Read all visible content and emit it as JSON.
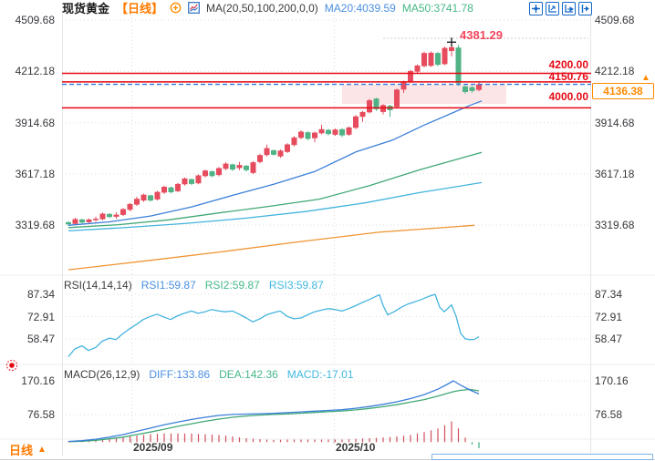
{
  "header": {
    "symbol": "现货黄金",
    "timeframe_tag": "【日线】",
    "ma_label": "MA(20,50,100,200,0,0)",
    "ma20_text": "MA20:4039.59",
    "ma50_text": "MA50:3741.78"
  },
  "toolbar": {
    "icons": [
      "pane-layout",
      "auto-scale",
      "chart-shift",
      "scroll-to-latest"
    ]
  },
  "labels": {
    "high": "4381.29",
    "resistance1": "4200.00",
    "resistance2": "4150.76",
    "support": "4000.00",
    "last_price": "4136.38",
    "badge_arrow": "▲"
  },
  "axes": {
    "main": [
      "4509.68",
      "4212.18",
      "3914.68",
      "3617.18",
      "3319.68"
    ],
    "rsi": [
      "87.34",
      "72.91",
      "58.47"
    ],
    "macd": [
      "170.16",
      "76.58"
    ]
  },
  "rsi_header": {
    "name": "RSI(14,14,14)",
    "rsi1": "RSI1:59.87",
    "rsi2": "RSI2:59.87",
    "rsi3": "RSI3:59.87"
  },
  "macd_header": {
    "name": "MACD(26,12,9)",
    "diff": "DIFF:133.86",
    "dea": "DEA:142.36",
    "macd": "MACD:-17.01"
  },
  "bottom": {
    "timeframe_label": "日线",
    "caret": "▲",
    "dates": [
      "2025/09",
      "2025/10"
    ]
  },
  "colors": {
    "up": "#e64c5e",
    "down": "#4fb385",
    "level_red": "#e60914",
    "last_blue": "#2f78e0",
    "ma20": "#3c7fd9",
    "ma50": "#41a876",
    "ma100": "#43b4dd",
    "ma200": "#ef9432",
    "rsi_line": "#43b4dd",
    "hist_pos": "#d24f5f",
    "hist_neg": "#3faf7f",
    "zone": "rgba(233,70,85,0.14)",
    "accent_orange": "#ff8a00"
  },
  "chart_data": {
    "type": "candlestick+indicators",
    "symbol": "现货黄金",
    "timeframe": "日线",
    "price_axis_ticks": [
      4509.68,
      4212.18,
      3914.68,
      3617.18,
      3319.68
    ],
    "x_axis_labels": [
      "2025/09",
      "2025/10"
    ],
    "levels": {
      "high": 4381.29,
      "resistance1": 4200.0,
      "resistance2": 4150.76,
      "support": 4000.0,
      "last_price": 4136.38
    },
    "ma_last": {
      "ma20": 4039.59,
      "ma50": 3741.78
    },
    "candles_ochl": [
      [
        3336,
        3324,
        3316,
        3342
      ],
      [
        3326,
        3354,
        3320,
        3362
      ],
      [
        3352,
        3334,
        3328,
        3356
      ],
      [
        3336,
        3352,
        3330,
        3358
      ],
      [
        3348,
        3356,
        3338,
        3368
      ],
      [
        3354,
        3386,
        3348,
        3392
      ],
      [
        3384,
        3366,
        3360,
        3388
      ],
      [
        3368,
        3380,
        3356,
        3394
      ],
      [
        3378,
        3412,
        3372,
        3418
      ],
      [
        3408,
        3442,
        3400,
        3448
      ],
      [
        3438,
        3472,
        3430,
        3484
      ],
      [
        3462,
        3496,
        3454,
        3502
      ],
      [
        3492,
        3462,
        3456,
        3496
      ],
      [
        3468,
        3512,
        3462,
        3518
      ],
      [
        3508,
        3542,
        3500,
        3548
      ],
      [
        3538,
        3510,
        3504,
        3542
      ],
      [
        3516,
        3558,
        3510,
        3564
      ],
      [
        3556,
        3590,
        3548,
        3596
      ],
      [
        3586,
        3558,
        3552,
        3590
      ],
      [
        3562,
        3608,
        3556,
        3614
      ],
      [
        3604,
        3636,
        3596,
        3642
      ],
      [
        3632,
        3604,
        3598,
        3636
      ],
      [
        3610,
        3650,
        3602,
        3656
      ],
      [
        3646,
        3676,
        3638,
        3684
      ],
      [
        3672,
        3642,
        3634,
        3676
      ],
      [
        3650,
        3668,
        3638,
        3686
      ],
      [
        3664,
        3638,
        3630,
        3668
      ],
      [
        3622,
        3684,
        3616,
        3690
      ],
      [
        3686,
        3726,
        3678,
        3734
      ],
      [
        3726,
        3766,
        3718,
        3786
      ],
      [
        3754,
        3728,
        3722,
        3758
      ],
      [
        3718,
        3752,
        3710,
        3758
      ],
      [
        3744,
        3788,
        3738,
        3794
      ],
      [
        3784,
        3828,
        3776,
        3836
      ],
      [
        3826,
        3862,
        3818,
        3870
      ],
      [
        3858,
        3820,
        3812,
        3864
      ],
      [
        3824,
        3856,
        3800,
        3862
      ],
      [
        3852,
        3876,
        3846,
        3902
      ],
      [
        3872,
        3848,
        3840,
        3878
      ],
      [
        3844,
        3874,
        3838,
        3880
      ],
      [
        3876,
        3840,
        3830,
        3882
      ],
      [
        3844,
        3886,
        3838,
        3892
      ],
      [
        3884,
        3950,
        3876,
        3958
      ],
      [
        3948,
        3976,
        3918,
        3982
      ],
      [
        3974,
        4044,
        3968,
        4052
      ],
      [
        4054,
        3992,
        3982,
        4058
      ],
      [
        3976,
        4016,
        3962,
        4022
      ],
      [
        4012,
        3986,
        3948,
        4018
      ],
      [
        4006,
        4106,
        3998,
        4112
      ],
      [
        4106,
        4148,
        4086,
        4158
      ],
      [
        4150,
        4214,
        4142,
        4220
      ],
      [
        4210,
        4246,
        4198,
        4252
      ],
      [
        4242,
        4318,
        4236,
        4326
      ],
      [
        4244,
        4320,
        4238,
        4328
      ],
      [
        4318,
        4250,
        4242,
        4324
      ],
      [
        4254,
        4348,
        4248,
        4356
      ],
      [
        4330,
        4352,
        4298,
        4381.29
      ],
      [
        4350,
        4142,
        4128,
        4366
      ],
      [
        4124,
        4092,
        4082,
        4130
      ],
      [
        4120,
        4098,
        4088,
        4126
      ],
      [
        4104,
        4136.38,
        4096,
        4150
      ]
    ],
    "ma20_points": [
      [
        75,
        3318
      ],
      [
        120,
        3338
      ],
      [
        165,
        3372
      ],
      [
        210,
        3425
      ],
      [
        255,
        3492
      ],
      [
        300,
        3556
      ],
      [
        345,
        3630
      ],
      [
        390,
        3744
      ],
      [
        430,
        3812
      ],
      [
        465,
        3900
      ],
      [
        495,
        3968
      ],
      [
        515,
        4014
      ],
      [
        528,
        4040
      ]
    ],
    "ma50_points": [
      [
        75,
        3305
      ],
      [
        130,
        3322
      ],
      [
        185,
        3350
      ],
      [
        240,
        3390
      ],
      [
        295,
        3428
      ],
      [
        350,
        3470
      ],
      [
        405,
        3548
      ],
      [
        460,
        3640
      ],
      [
        500,
        3700
      ],
      [
        528,
        3742
      ]
    ],
    "ma100_points": [
      [
        75,
        3286
      ],
      [
        140,
        3306
      ],
      [
        205,
        3330
      ],
      [
        270,
        3360
      ],
      [
        335,
        3398
      ],
      [
        400,
        3448
      ],
      [
        460,
        3508
      ],
      [
        528,
        3566
      ]
    ],
    "ma200_points": [
      [
        75,
        3060
      ],
      [
        160,
        3112
      ],
      [
        245,
        3166
      ],
      [
        330,
        3224
      ],
      [
        415,
        3278
      ],
      [
        520,
        3318
      ]
    ],
    "rsi": {
      "ticks": [
        87.34,
        72.91,
        58.47
      ],
      "last": 59.87,
      "points": [
        [
          75,
          47
        ],
        [
          82,
          52
        ],
        [
          90,
          54
        ],
        [
          97,
          51
        ],
        [
          105,
          53
        ],
        [
          112,
          57
        ],
        [
          120,
          59
        ],
        [
          127,
          58
        ],
        [
          135,
          62
        ],
        [
          142,
          65
        ],
        [
          150,
          68
        ],
        [
          157,
          71
        ],
        [
          165,
          73
        ],
        [
          172,
          74.5
        ],
        [
          180,
          72.5
        ],
        [
          187,
          71
        ],
        [
          195,
          73.5
        ],
        [
          202,
          75
        ],
        [
          210,
          76.5
        ],
        [
          217,
          75
        ],
        [
          225,
          76
        ],
        [
          232,
          77.5
        ],
        [
          240,
          76.5
        ],
        [
          247,
          76
        ],
        [
          255,
          76.5
        ],
        [
          262,
          74.5
        ],
        [
          270,
          72
        ],
        [
          277,
          69.5
        ],
        [
          285,
          71.5
        ],
        [
          292,
          74
        ],
        [
          300,
          75.5
        ],
        [
          307,
          76.5
        ],
        [
          315,
          73
        ],
        [
          322,
          71.5
        ],
        [
          330,
          72
        ],
        [
          337,
          74
        ],
        [
          345,
          76
        ],
        [
          352,
          77
        ],
        [
          360,
          78
        ],
        [
          367,
          77.5
        ],
        [
          375,
          76.5
        ],
        [
          382,
          78
        ],
        [
          390,
          80
        ],
        [
          397,
          82
        ],
        [
          405,
          84
        ],
        [
          412,
          86
        ],
        [
          416,
          87
        ],
        [
          420,
          80
        ],
        [
          425,
          74
        ],
        [
          432,
          76
        ],
        [
          440,
          79
        ],
        [
          447,
          81
        ],
        [
          455,
          82.5
        ],
        [
          462,
          84
        ],
        [
          470,
          86
        ],
        [
          477,
          87.3
        ],
        [
          482,
          79
        ],
        [
          487,
          76
        ],
        [
          495,
          80.5
        ],
        [
          500,
          73
        ],
        [
          505,
          62
        ],
        [
          510,
          58.5
        ],
        [
          515,
          58
        ],
        [
          520,
          58.2
        ],
        [
          525,
          59.87
        ]
      ]
    },
    "macd": {
      "ticks": [
        170.16,
        76.58
      ],
      "diff_last": 133.86,
      "dea_last": 142.36,
      "hist_last": -17.01,
      "diff_points": [
        [
          75,
          2
        ],
        [
          90,
          4
        ],
        [
          105,
          8
        ],
        [
          120,
          14
        ],
        [
          135,
          21
        ],
        [
          150,
          30
        ],
        [
          165,
          39
        ],
        [
          180,
          48
        ],
        [
          195,
          56
        ],
        [
          210,
          63
        ],
        [
          225,
          69
        ],
        [
          240,
          74
        ],
        [
          255,
          77
        ],
        [
          270,
          78
        ],
        [
          285,
          79
        ],
        [
          300,
          80
        ],
        [
          315,
          82
        ],
        [
          330,
          84
        ],
        [
          345,
          86
        ],
        [
          360,
          88
        ],
        [
          375,
          90
        ],
        [
          390,
          94
        ],
        [
          405,
          99
        ],
        [
          420,
          105
        ],
        [
          435,
          112
        ],
        [
          450,
          121
        ],
        [
          465,
          132
        ],
        [
          480,
          147
        ],
        [
          490,
          160
        ],
        [
          497,
          170.16
        ],
        [
          505,
          158
        ],
        [
          515,
          145
        ],
        [
          525,
          133.86
        ]
      ],
      "dea_points": [
        [
          75,
          1
        ],
        [
          90,
          2.5
        ],
        [
          105,
          5
        ],
        [
          120,
          9
        ],
        [
          135,
          14
        ],
        [
          150,
          21
        ],
        [
          165,
          28
        ],
        [
          180,
          36
        ],
        [
          195,
          44
        ],
        [
          210,
          51
        ],
        [
          225,
          58
        ],
        [
          240,
          64
        ],
        [
          255,
          69
        ],
        [
          270,
          72.5
        ],
        [
          285,
          75
        ],
        [
          300,
          77
        ],
        [
          315,
          78.5
        ],
        [
          330,
          80.5
        ],
        [
          345,
          82.5
        ],
        [
          360,
          84.5
        ],
        [
          375,
          86.5
        ],
        [
          390,
          89.5
        ],
        [
          405,
          93.5
        ],
        [
          420,
          98.5
        ],
        [
          435,
          104
        ],
        [
          450,
          111
        ],
        [
          465,
          118
        ],
        [
          480,
          128
        ],
        [
          490,
          135
        ],
        [
          497,
          140
        ],
        [
          505,
          144
        ],
        [
          515,
          146.5
        ],
        [
          525,
          142.36
        ]
      ]
    }
  }
}
